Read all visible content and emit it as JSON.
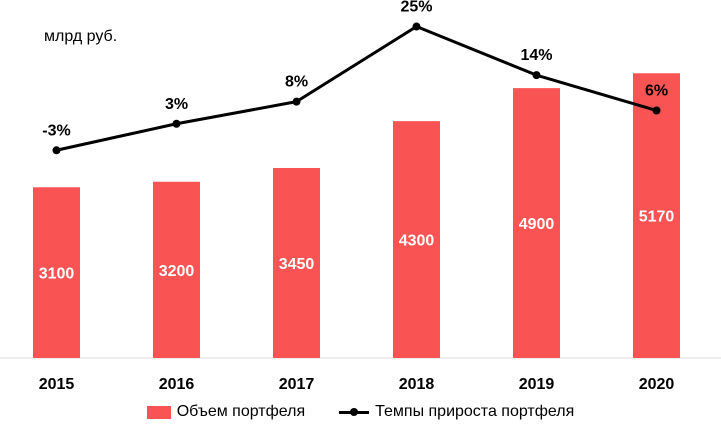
{
  "chart_data": {
    "type": "bar",
    "unit_label": "млрд руб.",
    "categories": [
      "2015",
      "2016",
      "2017",
      "2018",
      "2019",
      "2020"
    ],
    "series": [
      {
        "name": "Объем портфеля",
        "type": "bar",
        "color": "#F95353",
        "values": [
          3100,
          3200,
          3450,
          4300,
          4900,
          5170
        ],
        "labels": [
          "3100",
          "3200",
          "3450",
          "4300",
          "4900",
          "5170"
        ]
      },
      {
        "name": "Темпы прироста портфеля",
        "type": "line",
        "color": "#000000",
        "values": [
          -3,
          3,
          8,
          25,
          14,
          6
        ],
        "labels": [
          "-3%",
          "3%",
          "8%",
          "25%",
          "14%",
          "6%"
        ]
      }
    ],
    "bar_ylim": [
      0,
      6500
    ],
    "line_ylim": [
      -50,
      31
    ],
    "legend_position": "bottom",
    "grid": false
  }
}
